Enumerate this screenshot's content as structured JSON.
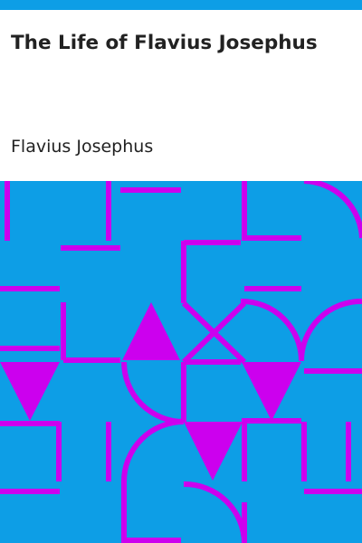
{
  "book": {
    "title": "The Life of Flavius Josephus",
    "author": "Flavius Josephus"
  },
  "colors": {
    "accent": "#0d9ee6",
    "pattern_stroke": "#cc00ee",
    "text": "#222222",
    "background": "#ffffff"
  }
}
